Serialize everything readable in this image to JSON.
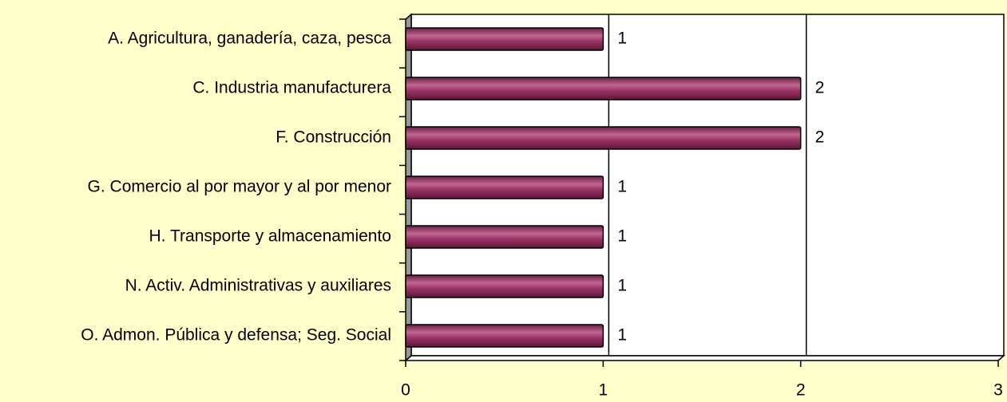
{
  "chart_data": {
    "type": "bar",
    "orientation": "horizontal",
    "categories": [
      "A. Agricultura, ganadería, caza, pesca",
      "C. Industria manufacturera",
      "F. Construcción",
      "G. Comercio al por mayor y al por menor",
      "H. Transporte y almacenamiento",
      "N. Activ. Administrativas y auxiliares",
      "O. Admon. Pública y defensa; Seg. Social"
    ],
    "values": [
      1,
      2,
      2,
      1,
      1,
      1,
      1
    ],
    "color": "#993366",
    "xlim": [
      0,
      3
    ],
    "xticks": [
      0,
      1,
      2,
      3
    ],
    "grid": true
  }
}
